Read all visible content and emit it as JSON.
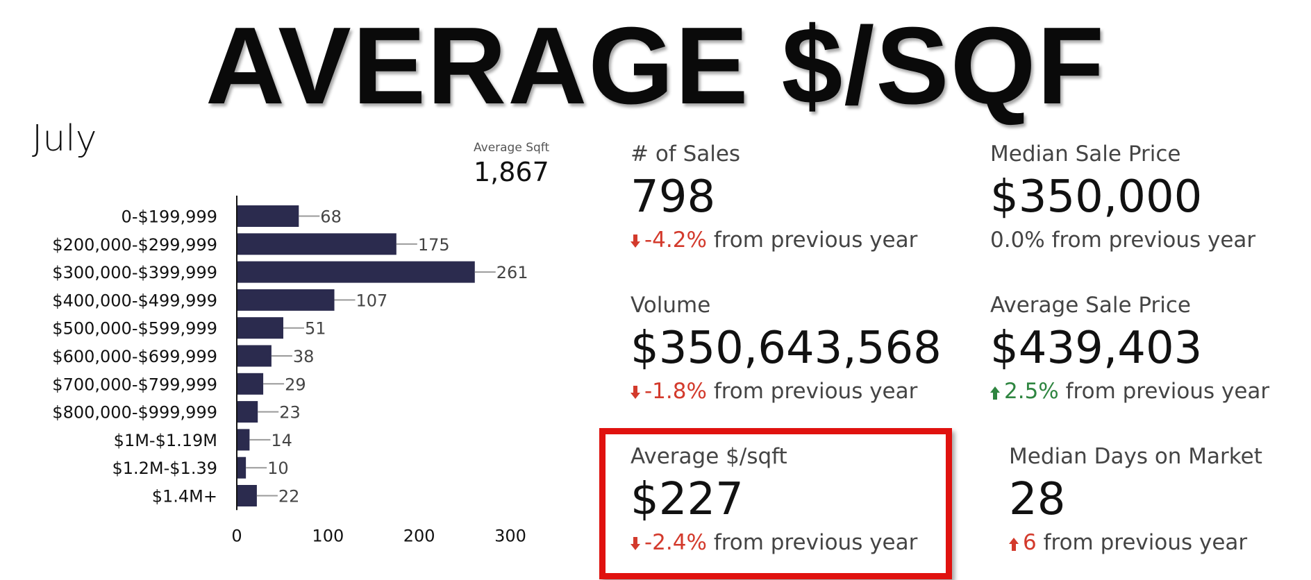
{
  "headline": "AVERAGE $/SQF",
  "month": "July",
  "average_sqft": {
    "label": "Average Sqft",
    "value": "1,867"
  },
  "chart_data": {
    "type": "bar",
    "orientation": "horizontal",
    "categories": [
      "0-$199,999",
      "$200,000-$299,999",
      "$300,000-$399,999",
      "$400,000-$499,999",
      "$500,000-$599,999",
      "$600,000-$699,999",
      "$700,000-$799,999",
      "$800,000-$999,999",
      "$1M-$1.19M",
      "$1.2M-$1.39",
      "$1.4M+"
    ],
    "values": [
      68,
      175,
      261,
      107,
      51,
      38,
      29,
      23,
      14,
      10,
      22
    ],
    "xlim": [
      0,
      300
    ],
    "xticks": [
      0,
      100,
      200,
      300
    ],
    "bar_color": "#2b2b4e",
    "grid": false
  },
  "kpis": {
    "sales": {
      "label": "# of Sales",
      "value": "798",
      "delta": "-4.2%",
      "direction": "down",
      "suffix": "from previous year"
    },
    "median_price": {
      "label": "Median Sale Price",
      "value": "$350,000",
      "delta": "0.0%",
      "direction": "none",
      "suffix": "from previous year"
    },
    "volume": {
      "label": "Volume",
      "value": "$350,643,568",
      "delta": "-1.8%",
      "direction": "down",
      "suffix": "from previous year"
    },
    "avg_price": {
      "label": "Average Sale Price",
      "value": "$439,403",
      "delta": "2.5%",
      "direction": "up",
      "suffix": "from previous year"
    },
    "avg_psf": {
      "label": "Average $/sqft",
      "value": "$227",
      "delta": "-2.4%",
      "direction": "down",
      "suffix": "from previous year"
    },
    "dom": {
      "label": "Median Days on Market",
      "value": "28",
      "delta": "6",
      "direction": "up-bad",
      "suffix": "from previous year"
    }
  },
  "colors": {
    "negative": "#d33a2c",
    "positive": "#2e8540",
    "highlight": "#e0120f"
  }
}
